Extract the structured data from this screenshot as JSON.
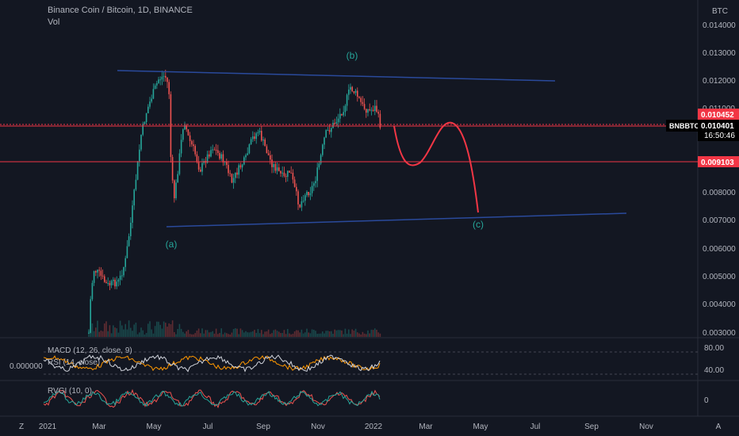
{
  "header": {
    "title": "Binance Coin / Bitcoin, 1D, BINANCE",
    "vol_label": "Vol"
  },
  "price_axis": {
    "currency": "BTC",
    "ticks": [
      "0.014000",
      "0.013000",
      "0.012000",
      "0.011000",
      "0.008000",
      "0.007000",
      "0.006000",
      "0.005000",
      "0.004000",
      "0.003000"
    ]
  },
  "price_tags": {
    "top": "0.010452",
    "symbol": "BNBBTC",
    "current": "0.010401",
    "countdown": "16:50:46",
    "support": "0.009103"
  },
  "wave_labels": {
    "a": "(a)",
    "b": "(b)",
    "c": "(c)"
  },
  "macd_pane": {
    "legend_macd": "MACD (12, 26, close, 9)",
    "legend_rsi": "RSI (14, close)",
    "left_value": "0.000000",
    "ticks": [
      "80.00",
      "40.00"
    ]
  },
  "rvgi_pane": {
    "legend": "RVGI (10, 0)",
    "ticks": [
      "0"
    ]
  },
  "time_axis": {
    "labels": [
      "2021",
      "Mar",
      "May",
      "Jul",
      "Sep",
      "Nov",
      "2022",
      "Mar",
      "May",
      "Jul",
      "Sep",
      "Nov"
    ]
  },
  "corners": {
    "zoom": "Z",
    "auto": "A"
  },
  "colors": {
    "background": "#131722",
    "up": "#26a69a",
    "down": "#ef5350",
    "trendline": "#2a4a9c",
    "resistance": "#f23645",
    "projection": "#f23645",
    "wave_label": "#26a69a",
    "macd_line": "#2962ff",
    "rsi_line": "#ff9800"
  }
}
